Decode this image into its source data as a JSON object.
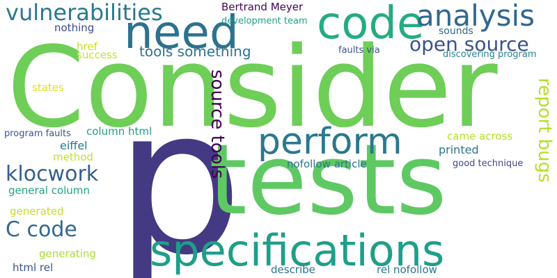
{
  "cloud": {
    "words": [
      {
        "text": "Consider",
        "color": "#6ece58"
      },
      {
        "text": "p",
        "color": "#443983"
      },
      {
        "text": "tests",
        "color": "#5ec962"
      },
      {
        "text": "specifications",
        "color": "#1f9e89"
      },
      {
        "text": "need",
        "color": "#2c728e"
      },
      {
        "text": "code",
        "color": "#25ab82"
      },
      {
        "text": "perform",
        "color": "#2a788e"
      },
      {
        "text": "analysis",
        "color": "#31688e"
      },
      {
        "text": "vulnerabilities",
        "color": "#2a788e"
      },
      {
        "text": "open source",
        "color": "#3b528b"
      },
      {
        "text": "report bugs",
        "color": "#b5de2b"
      },
      {
        "text": "source tools",
        "color": "#440154"
      },
      {
        "text": "klocwork",
        "color": "#355f8d"
      },
      {
        "text": "C code",
        "color": "#31688e"
      },
      {
        "text": "tools something",
        "color": "#2c728e"
      },
      {
        "text": "Bertrand Meyer",
        "color": "#440154"
      },
      {
        "text": "development team",
        "color": "#1fa088"
      },
      {
        "text": "nothing",
        "color": "#3e4989"
      },
      {
        "text": "sounds",
        "color": "#31688e"
      },
      {
        "text": "href",
        "color": "#c8e020"
      },
      {
        "text": "success",
        "color": "#cae11f"
      },
      {
        "text": "faults via",
        "color": "#3b528b"
      },
      {
        "text": "discovering program",
        "color": "#26828e"
      },
      {
        "text": "states",
        "color": "#dde318"
      },
      {
        "text": "program faults",
        "color": "#3b528b"
      },
      {
        "text": "column html",
        "color": "#1f9e89"
      },
      {
        "text": "came across",
        "color": "#b8de29"
      },
      {
        "text": "eiffel",
        "color": "#2a788e"
      },
      {
        "text": "printed",
        "color": "#2c728e"
      },
      {
        "text": "method",
        "color": "#c0df25"
      },
      {
        "text": "nofollow article",
        "color": "#2c728e"
      },
      {
        "text": "good technique",
        "color": "#3e4989"
      },
      {
        "text": "general column",
        "color": "#20a386"
      },
      {
        "text": "generated",
        "color": "#c2df23"
      },
      {
        "text": "generating",
        "color": "#aadc32"
      },
      {
        "text": "html rel",
        "color": "#3b528b"
      },
      {
        "text": "describe",
        "color": "#2c728e"
      },
      {
        "text": "rel nofollow",
        "color": "#2a788e"
      }
    ]
  }
}
